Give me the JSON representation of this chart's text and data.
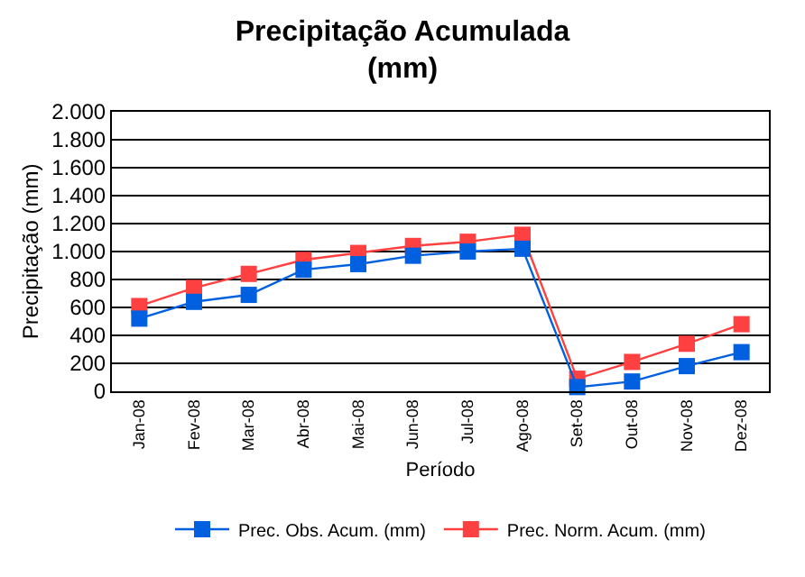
{
  "chart_data": {
    "type": "line",
    "title": "Precipitação Acumulada\n(mm)",
    "xlabel": "Período",
    "ylabel": "Precipitação (mm)",
    "categories": [
      "Jan-08",
      "Fev-08",
      "Mar-08",
      "Abr-08",
      "Mai-08",
      "Jun-08",
      "Jul-08",
      "Ago-08",
      "Set-08",
      "Out-08",
      "Nov-08",
      "Dez-08"
    ],
    "series": [
      {
        "name": "Prec. Obs. Acum. (mm)",
        "color": "#0060e0",
        "values": [
          520,
          640,
          690,
          870,
          910,
          970,
          1000,
          1020,
          30,
          70,
          180,
          280
        ]
      },
      {
        "name": "Prec. Norm. Acum. (mm)",
        "color": "#ff4040",
        "values": [
          610,
          740,
          840,
          940,
          990,
          1040,
          1070,
          1120,
          90,
          210,
          340,
          480
        ]
      }
    ],
    "ylim": [
      0,
      2000
    ],
    "yticks": [
      0,
      200,
      400,
      600,
      800,
      {
        "value": 1000,
        "label": "1.000"
      },
      {
        "value": 1200,
        "label": "1.200"
      },
      {
        "value": 1400,
        "label": "1.400"
      },
      {
        "value": 1600,
        "label": "1.600"
      },
      {
        "value": 1800,
        "label": "1.800"
      },
      {
        "value": 2000,
        "label": "2.000"
      }
    ],
    "grid": "y",
    "legend": "bottom",
    "marker": "square",
    "line_style": "solid"
  }
}
